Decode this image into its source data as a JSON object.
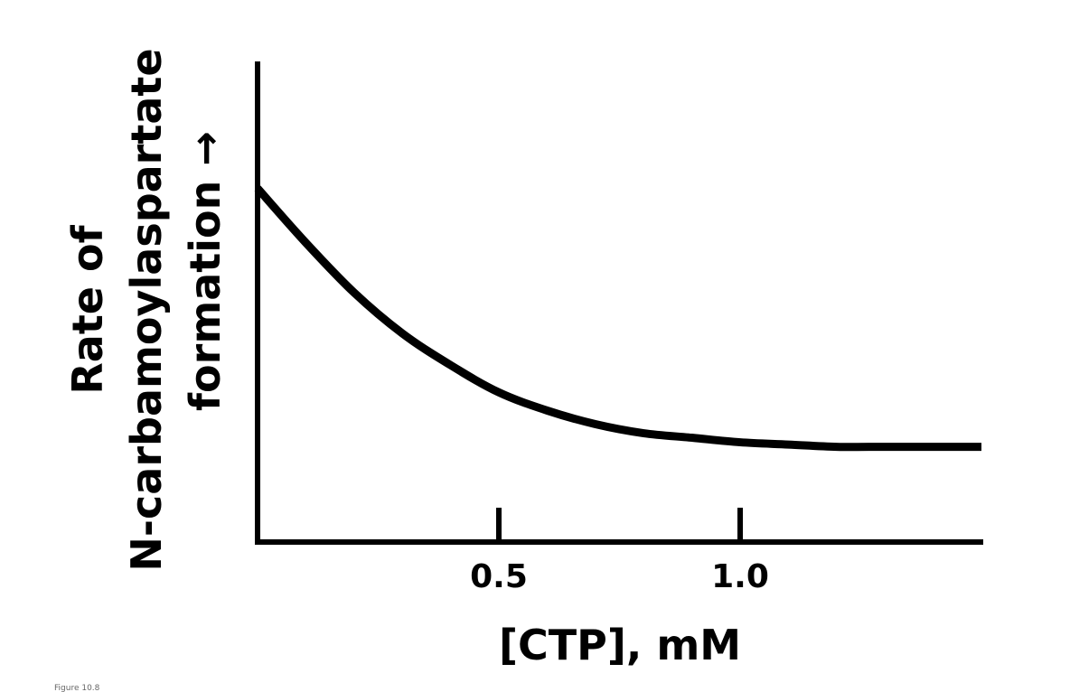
{
  "chart_data": {
    "type": "line",
    "title": "",
    "xlabel": "[CTP], mM",
    "ylabel_lines": [
      "Rate of",
      "N-carbamoylaspartate",
      "formation →"
    ],
    "xlim": [
      0,
      1.5
    ],
    "ylim": [
      0,
      1
    ],
    "x_ticks": [
      0.5,
      1.0
    ],
    "x_tick_labels": [
      "0.5",
      "1.0"
    ],
    "grid": false,
    "legend": "none",
    "series": [
      {
        "x": [
          0,
          0.1,
          0.2,
          0.3,
          0.4,
          0.5,
          0.6,
          0.7,
          0.8,
          0.9,
          1.0,
          1.1,
          1.2,
          1.3,
          1.4,
          1.5
        ],
        "values": [
          0.78,
          0.66,
          0.55,
          0.46,
          0.39,
          0.33,
          0.29,
          0.26,
          0.24,
          0.23,
          0.22,
          0.215,
          0.21,
          0.21,
          0.21,
          0.21
        ]
      }
    ]
  },
  "caption": "Figure 10.8"
}
